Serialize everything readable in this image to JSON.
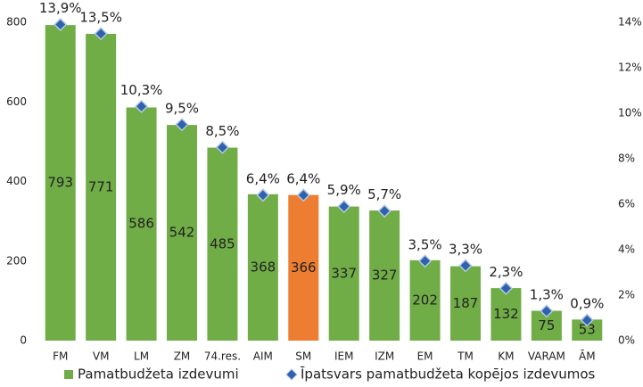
{
  "chart_data": {
    "type": "bar",
    "categories": [
      "FM",
      "VM",
      "LM",
      "ZM",
      "74.res.",
      "AIM",
      "SM",
      "IEM",
      "IZM",
      "EM",
      "TM",
      "KM",
      "VARAM",
      "ĀM"
    ],
    "series": [
      {
        "name": "Pamatbudžeta izdevumi",
        "type": "bar",
        "color": "#70ad47",
        "colors": [
          "#70ad47",
          "#70ad47",
          "#70ad47",
          "#70ad47",
          "#70ad47",
          "#70ad47",
          "#ed7d31",
          "#70ad47",
          "#70ad47",
          "#70ad47",
          "#70ad47",
          "#70ad47",
          "#70ad47",
          "#70ad47"
        ],
        "values": [
          793,
          771,
          586,
          542,
          485,
          368,
          366,
          337,
          327,
          202,
          187,
          132,
          75,
          53
        ]
      },
      {
        "name": "Īpatsvars pamatbudžeta kopējos izdevumos",
        "type": "marker",
        "axis": "y2",
        "color": "#2e62ad",
        "values": [
          13.9,
          13.5,
          10.3,
          9.5,
          8.5,
          6.4,
          6.4,
          5.9,
          5.7,
          3.5,
          3.3,
          2.3,
          1.3,
          0.9
        ],
        "value_labels": [
          "13,9%",
          "13,5%",
          "10,3%",
          "9,5%",
          "8,5%",
          "6,4%",
          "6,4%",
          "5,9%",
          "5,7%",
          "3,5%",
          "3,3%",
          "2,3%",
          "1,3%",
          "0,9%"
        ]
      }
    ],
    "ylim": [
      0,
      800
    ],
    "yticks": [
      0,
      200,
      400,
      600,
      800
    ],
    "y2lim": [
      0,
      14
    ],
    "y2ticks": [
      {
        "value": 0,
        "label": "0%"
      },
      {
        "value": 2,
        "label": "2%"
      },
      {
        "value": 4,
        "label": "4%"
      },
      {
        "value": 6,
        "label": "6%"
      },
      {
        "value": 8,
        "label": "8%"
      },
      {
        "value": 10,
        "label": "10%"
      },
      {
        "value": 12,
        "label": "12%"
      },
      {
        "value": 14,
        "label": "14%"
      }
    ],
    "grid": false,
    "legend": "bottom"
  }
}
